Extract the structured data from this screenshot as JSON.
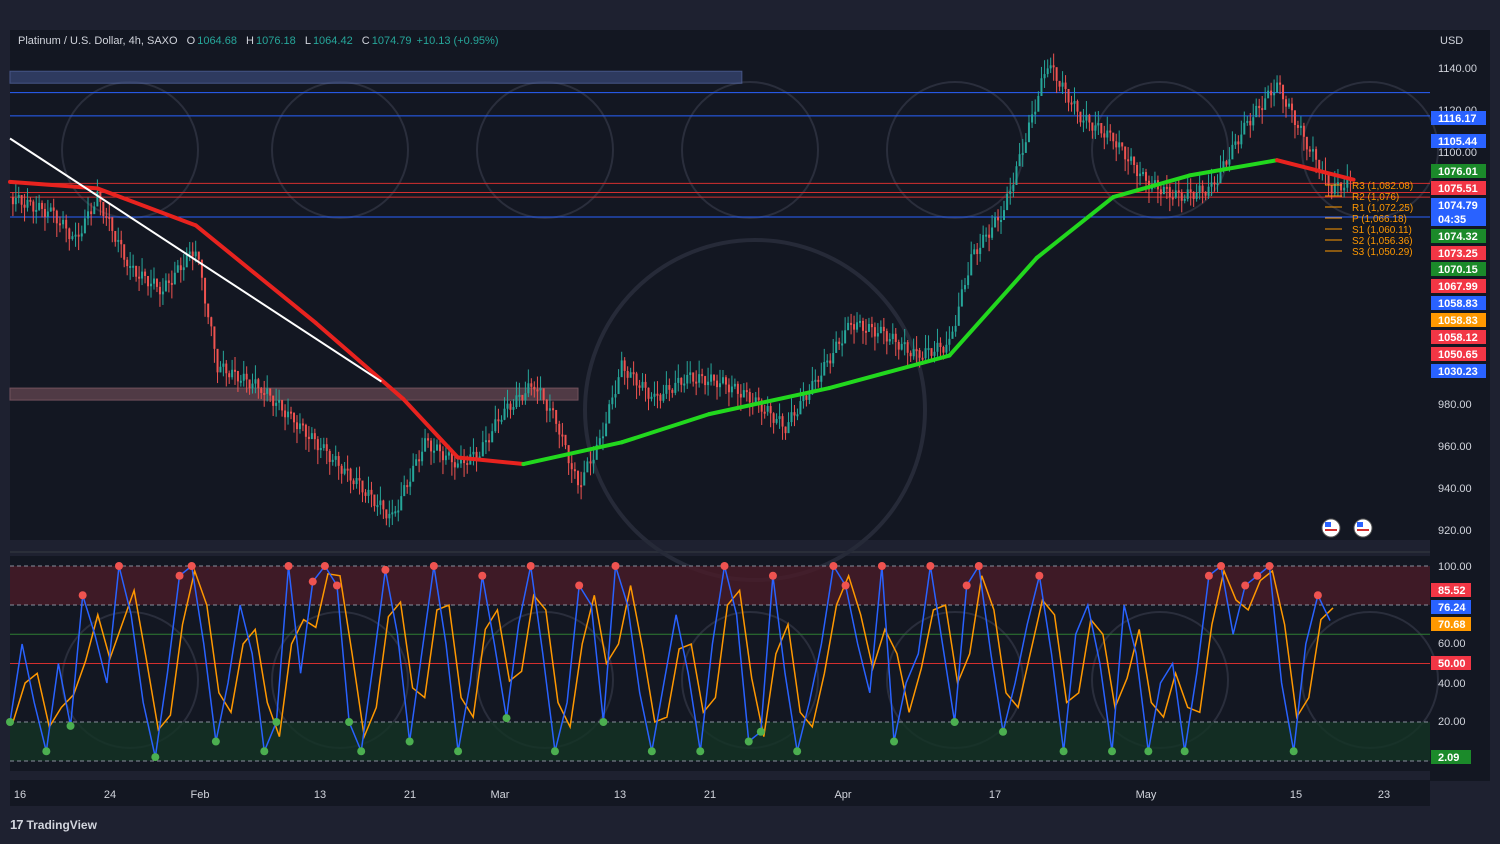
{
  "header": {
    "symbol": "Platinum / U.S. Dollar, 4h, SAXO",
    "o_label": "O",
    "open": "1064.68",
    "h_label": "H",
    "high": "1076.18",
    "l_label": "L",
    "low": "1064.42",
    "c_label": "C",
    "close": "1074.79",
    "change": "+10.13 (+0.95%)",
    "currency": "USD"
  },
  "branding": {
    "logo": "TradingView"
  },
  "colors": {
    "up": "#26a69a",
    "down": "#ef5350",
    "ema_red": "#e8231f",
    "ema_green": "#22d81e",
    "stoch_k": "#2962ff",
    "stoch_d": "#ff9800",
    "bg": "#1e2130"
  },
  "chart_data": [
    {
      "type": "line",
      "title": "Platinum / U.S. Dollar, 4h, SAXO",
      "ylabel": "USD",
      "ylim": [
        910,
        1145
      ],
      "x_ticks": [
        "16",
        "24",
        "Feb",
        "13",
        "21",
        "Mar",
        "13",
        "21",
        "Apr",
        "17",
        "May",
        "15",
        "23"
      ],
      "y_ticks": [
        "1140.00",
        "1120.00",
        "1100.00",
        "980.00",
        "960.00",
        "940.00",
        "920.00"
      ],
      "price_path": [
        [
          "Jan 16",
          1068
        ],
        [
          "Jan 20",
          1060
        ],
        [
          "Jan 22",
          1048
        ],
        [
          "Jan 24",
          1068
        ],
        [
          "Jan 27",
          1035
        ],
        [
          "Jan 30",
          1025
        ],
        [
          "Feb 2",
          1045
        ],
        [
          "Feb 4",
          990
        ],
        [
          "Feb 8",
          980
        ],
        [
          "Feb 11",
          965
        ],
        [
          "Feb 14",
          950
        ],
        [
          "Feb 17",
          935
        ],
        [
          "Feb 20",
          920
        ],
        [
          "Feb 23",
          955
        ],
        [
          "Feb 26",
          945
        ],
        [
          "Feb 28",
          950
        ],
        [
          "Mar 2",
          968
        ],
        [
          "Mar 5",
          982
        ],
        [
          "Mar 7",
          965
        ],
        [
          "Mar 9",
          935
        ],
        [
          "Mar 11",
          955
        ],
        [
          "Mar 13",
          990
        ],
        [
          "Mar 16",
          975
        ],
        [
          "Mar 19",
          985
        ],
        [
          "Mar 22",
          983
        ],
        [
          "Mar 25",
          975
        ],
        [
          "Mar 28",
          962
        ],
        [
          "Mar 31",
          985
        ],
        [
          "Apr 3",
          1010
        ],
        [
          "Apr 6",
          1005
        ],
        [
          "Apr 9",
          995
        ],
        [
          "Apr 12",
          1000
        ],
        [
          "Apr 14",
          1040
        ],
        [
          "Apr 17",
          1062
        ],
        [
          "Apr 19",
          1095
        ],
        [
          "Apr 21",
          1130
        ],
        [
          "Apr 24",
          1105
        ],
        [
          "Apr 27",
          1095
        ],
        [
          "Apr 30",
          1075
        ],
        [
          "May 3",
          1068
        ],
        [
          "May 6",
          1072
        ],
        [
          "May 9",
          1100
        ],
        [
          "May 12",
          1120
        ],
        [
          "May 15",
          1090
        ],
        [
          "May 17",
          1072
        ],
        [
          "May 19",
          1075
        ]
      ],
      "ema_fast_path": [
        [
          "Jan 16",
          1075
        ],
        [
          "Jan 24",
          1072
        ],
        [
          "Feb 2",
          1055
        ],
        [
          "Feb 13",
          1010
        ],
        [
          "Feb 21",
          975
        ],
        [
          "Feb 26",
          948
        ],
        [
          "Mar 4",
          945
        ],
        [
          "Mar 13",
          955
        ],
        [
          "Mar 21",
          968
        ],
        [
          "Apr 1",
          980
        ],
        [
          "Apr 12",
          995
        ],
        [
          "Apr 20",
          1040
        ],
        [
          "Apr 27",
          1068
        ],
        [
          "May 4",
          1078
        ],
        [
          "May 12",
          1085
        ],
        [
          "May 19",
          1076
        ]
      ],
      "trendline": {
        "from": [
          "Jan 16",
          1095
        ],
        "to": [
          "Feb 19",
          983
        ]
      },
      "resistance_lines": [
        1116.17,
        1105.44,
        1058.83
      ],
      "support_lines": [
        1074.32,
        1070.15,
        1067.99
      ],
      "zones": [
        {
          "from": "Jan 16",
          "to": "Mar 24",
          "low": 1123,
          "high": 1126
        },
        {
          "from": "Jan 16",
          "to": "Mar 9",
          "low": 977,
          "high": 980
        }
      ],
      "pivots": [
        {
          "label": "R3 (1,082.08)",
          "value": 1082.08
        },
        {
          "label": "R2 (1,076)",
          "value": 1076
        },
        {
          "label": "R1 (1,072.25)",
          "value": 1072.25
        },
        {
          "label": "P (1,066.18)",
          "value": 1066.18
        },
        {
          "label": "S1 (1,060.11)",
          "value": 1060.11
        },
        {
          "label": "S2 (1,056.36)",
          "value": 1056.36
        },
        {
          "label": "S3 (1,050.29)",
          "value": 1050.29
        }
      ],
      "price_tags": [
        {
          "text": "1116.17",
          "color": "#2962ff"
        },
        {
          "text": "1105.44",
          "color": "#2962ff"
        },
        {
          "text": "1076.01",
          "color": "#1b8a2a"
        },
        {
          "text": "1075.51",
          "color": "#f23645"
        },
        {
          "text": "1074.79",
          "color": "#2962ff"
        },
        {
          "text": "04:35",
          "color": "#2962ff"
        },
        {
          "text": "1074.32",
          "color": "#1b8a2a"
        },
        {
          "text": "1073.25",
          "color": "#f23645"
        },
        {
          "text": "1070.15",
          "color": "#1b8a2a"
        },
        {
          "text": "1067.99",
          "color": "#f23645"
        },
        {
          "text": "1058.83",
          "color": "#2962ff"
        },
        {
          "text": "1058.83",
          "color": "#ff9800"
        },
        {
          "text": "1058.12",
          "color": "#f23645"
        },
        {
          "text": "1050.65",
          "color": "#f23645"
        },
        {
          "text": "1030.23",
          "color": "#2962ff"
        }
      ]
    },
    {
      "type": "line",
      "title": "",
      "ylim": [
        0,
        100
      ],
      "y_ticks": [
        "100.00",
        "60.00",
        "40.00",
        "20.00"
      ],
      "overbought": 80,
      "oversold": 20,
      "midline": 50,
      "series": [
        {
          "values": [
            20,
            60,
            30,
            5,
            50,
            18,
            85,
            65,
            40,
            100,
            75,
            30,
            2,
            45,
            95,
            100,
            60,
            10,
            40,
            80,
            55,
            5,
            20,
            100,
            45,
            92,
            100,
            90,
            20,
            5,
            50,
            98,
            65,
            10,
            55,
            100,
            60,
            5,
            40,
            95,
            60,
            22,
            70,
            100,
            55,
            5,
            30,
            90,
            80,
            20,
            100,
            80,
            35,
            5,
            40,
            75,
            45,
            5,
            60,
            100,
            75,
            10,
            15,
            95,
            45,
            5,
            30,
            60,
            100,
            90,
            60,
            35,
            100,
            10,
            40,
            55,
            100,
            60,
            20,
            90,
            100,
            55,
            15,
            40,
            70,
            95,
            55,
            5,
            65,
            80,
            50,
            5,
            80,
            55,
            5,
            40,
            50,
            5,
            45,
            95,
            100,
            65,
            90,
            95,
            100,
            40,
            5,
            60,
            85,
            72
          ]
        }
      ],
      "last_values": [
        {
          "text": "85.52",
          "color": "#f23645"
        },
        {
          "text": "76.24",
          "color": "#2962ff"
        },
        {
          "text": "70.68",
          "color": "#ff9800"
        },
        {
          "text": "50.00",
          "color": "#f23645"
        },
        {
          "text": "2.09",
          "color": "#1b8a2a"
        }
      ]
    }
  ]
}
